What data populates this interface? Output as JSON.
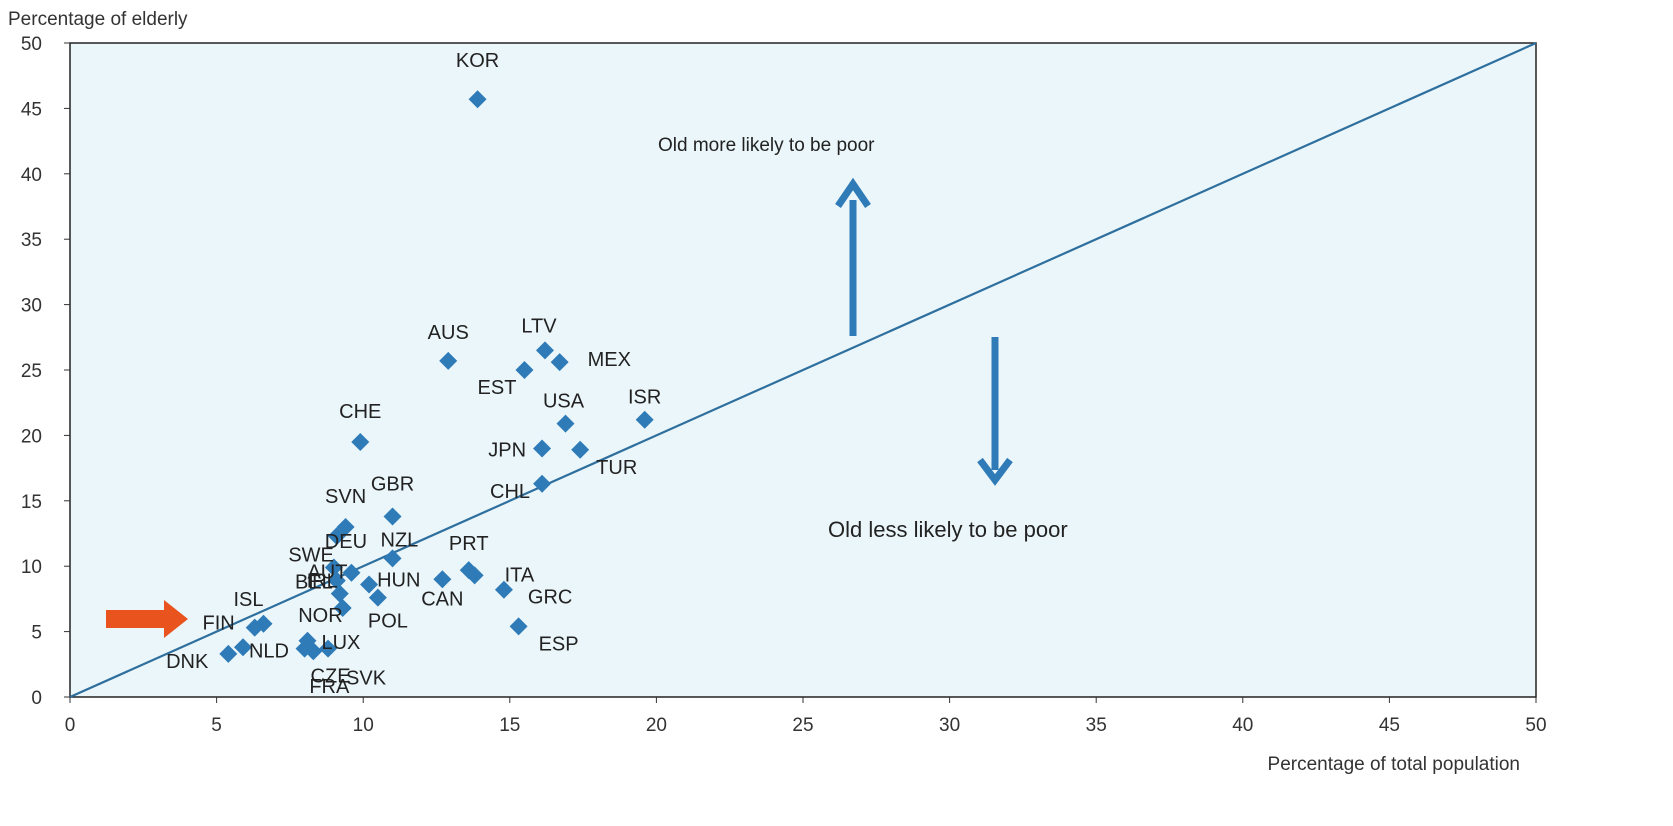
{
  "chart_data": {
    "type": "scatter",
    "xlabel": "Percentage of total population",
    "ylabel": "Percentage of elderly",
    "xlim": [
      0,
      50
    ],
    "ylim": [
      0,
      50
    ],
    "xticks": [
      "0",
      "5",
      "10",
      "15",
      "20",
      "25",
      "30",
      "35",
      "40",
      "45",
      "50"
    ],
    "yticks": [
      "0",
      "5",
      "10",
      "15",
      "20",
      "25",
      "30",
      "35",
      "40",
      "45",
      "50"
    ],
    "grid": false,
    "colors": {
      "background": "#eaf6fa",
      "marker": "#2e7bb8",
      "line": "#2e6f9e",
      "arrow": "#2e7bb8",
      "highlight_arrow": "#e8531e"
    },
    "reference_line": {
      "x": [
        0,
        50
      ],
      "y": [
        0,
        50
      ]
    },
    "points": [
      {
        "label": "KOR",
        "x": 13.9,
        "y": 45.7
      },
      {
        "label": "AUS",
        "x": 12.9,
        "y": 25.7
      },
      {
        "label": "LTV",
        "x": 16.2,
        "y": 26.5
      },
      {
        "label": "MEX",
        "x": 16.7,
        "y": 25.6
      },
      {
        "label": "EST",
        "x": 15.5,
        "y": 25.0
      },
      {
        "label": "ISR",
        "x": 19.6,
        "y": 21.2
      },
      {
        "label": "USA",
        "x": 16.9,
        "y": 20.9
      },
      {
        "label": "CHE",
        "x": 9.9,
        "y": 19.5
      },
      {
        "label": "JPN",
        "x": 16.1,
        "y": 19.0
      },
      {
        "label": "TUR",
        "x": 17.4,
        "y": 18.9
      },
      {
        "label": "CHL",
        "x": 16.1,
        "y": 16.3
      },
      {
        "label": "GBR",
        "x": 11.0,
        "y": 13.8
      },
      {
        "label": "SVN",
        "x": 9.4,
        "y": 13.0
      },
      {
        "label": "DEU",
        "x": 9.1,
        "y": 12.3
      },
      {
        "label": "NZL",
        "x": 11.0,
        "y": 10.6
      },
      {
        "label": "SWE",
        "x": 9.0,
        "y": 9.9
      },
      {
        "label": "AUT",
        "x": 9.6,
        "y": 9.5
      },
      {
        "label": "BEL",
        "x": 9.1,
        "y": 8.9
      },
      {
        "label": "PRT",
        "x": 13.6,
        "y": 9.7
      },
      {
        "label": "ITA",
        "x": 13.8,
        "y": 9.3
      },
      {
        "label": "HUN",
        "x": 10.2,
        "y": 8.6
      },
      {
        "label": "CAN",
        "x": 12.7,
        "y": 9.0
      },
      {
        "label": "GRC",
        "x": 14.8,
        "y": 8.2
      },
      {
        "label": "IRL",
        "x": 9.2,
        "y": 7.9
      },
      {
        "label": "POL",
        "x": 10.5,
        "y": 7.6
      },
      {
        "label": "NOR",
        "x": 9.3,
        "y": 6.8
      },
      {
        "label": "ISL",
        "x": 6.6,
        "y": 5.6
      },
      {
        "label": "FIN",
        "x": 6.3,
        "y": 5.3
      },
      {
        "label": "ESP",
        "x": 15.3,
        "y": 5.4
      },
      {
        "label": "LUX",
        "x": 8.1,
        "y": 4.3
      },
      {
        "label": "NLD",
        "x": 5.9,
        "y": 3.8
      },
      {
        "label": "DNK",
        "x": 5.4,
        "y": 3.3
      },
      {
        "label": "CZE",
        "x": 8.0,
        "y": 3.7
      },
      {
        "label": "FRA",
        "x": 8.3,
        "y": 3.5
      },
      {
        "label": "SVK",
        "x": 8.8,
        "y": 3.7
      }
    ],
    "annotations": [
      {
        "id": "above",
        "text": "Old more likely to be poor"
      },
      {
        "id": "below",
        "text": "Old less likely to be poor"
      }
    ],
    "highlight": "FIN"
  }
}
